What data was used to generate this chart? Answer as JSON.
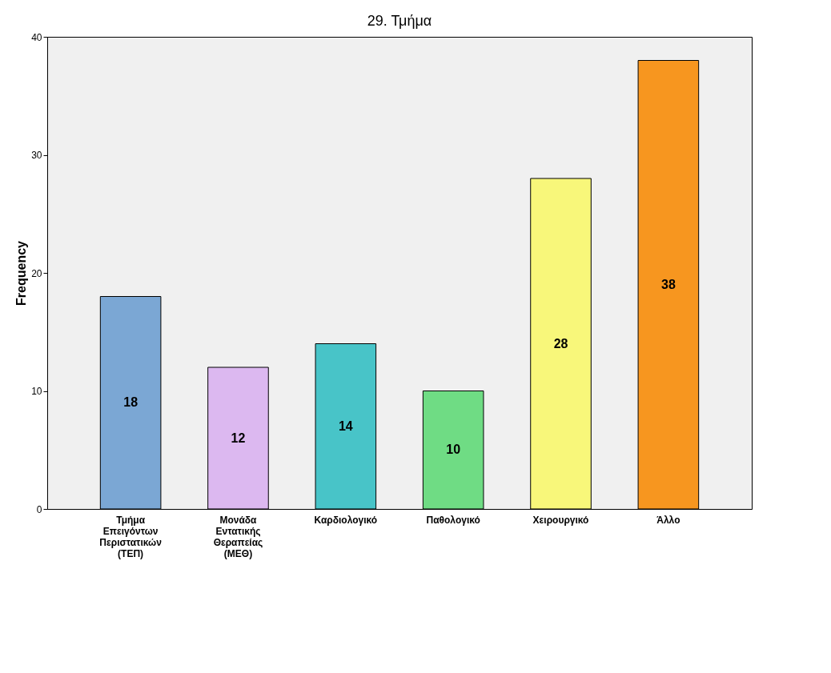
{
  "chart_data": {
    "type": "bar",
    "title": "29. Τμήμα",
    "ylabel": "Frequency",
    "categories": [
      "Τμήμα Επειγόντων Περιστατικών (ΤΕΠ)",
      "Μονάδα Εντατικής Θεραπείας (ΜΕΘ)",
      "Καρδιολογικό",
      "Παθολογικό",
      "Χειρουργικό",
      "Άλλο"
    ],
    "values": [
      18,
      12,
      14,
      10,
      28,
      38
    ],
    "colors": [
      "#7ba7d4",
      "#dcb8f0",
      "#48c4c8",
      "#6fdc84",
      "#f8f77a",
      "#f7961f"
    ],
    "ylim": [
      0,
      40
    ],
    "yticks": [
      0,
      10,
      20,
      30,
      40
    ],
    "grid": false,
    "data_labels": true
  }
}
